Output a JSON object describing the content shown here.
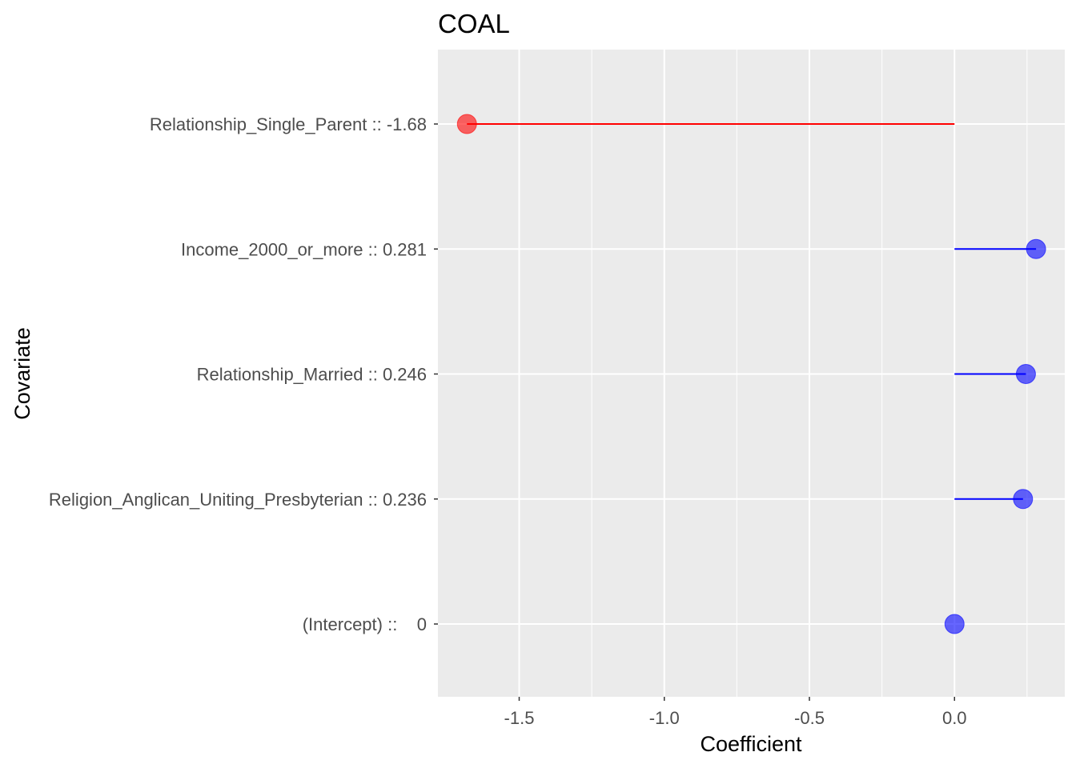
{
  "chart_data": {
    "type": "lollipop",
    "title": "COAL",
    "xlabel": "Coefficient",
    "ylabel": "Covariate",
    "xlim": [
      -1.78,
      0.38
    ],
    "x_ticks": [
      -1.5,
      -1.0,
      -0.5,
      0.0
    ],
    "x_tick_labels": [
      "-1.5",
      "-1.0",
      "-0.5",
      "0.0"
    ],
    "x_minor_ticks": [
      -1.25,
      -0.75,
      -0.25,
      0.25
    ],
    "grid": true,
    "categories": [
      "Relationship_Single_Parent :: -1.68",
      "Income_2000_or_more :: 0.281",
      "Relationship_Married :: 0.246",
      "Religion_Anglican_Uniting_Presbyterian :: 0.236",
      "(Intercept) ::    0"
    ],
    "values": [
      -1.68,
      0.281,
      0.246,
      0.236,
      0
    ],
    "colors": [
      "#FF0000",
      "#0000FF",
      "#0000FF",
      "#0000FF",
      "#0000FF"
    ],
    "panel_background": "#EBEBEB",
    "grid_color": "#FFFFFF"
  }
}
